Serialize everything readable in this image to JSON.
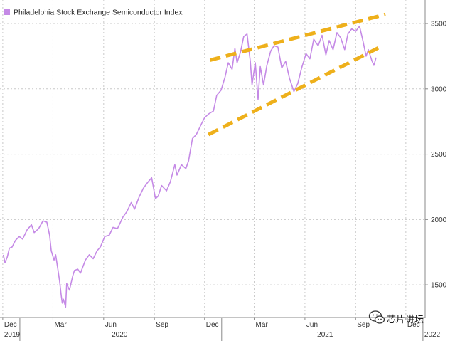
{
  "chart_data": {
    "type": "line",
    "title": "",
    "xlabel": "",
    "ylabel": "",
    "ylim": [
      1250,
      3680
    ],
    "xlim": [
      "2019-11-26",
      "2022-01-05"
    ],
    "grid": true,
    "legend_position": "top-left",
    "series": [
      {
        "name": "Philadelphia Stock Exchange Semiconductor Index",
        "color": "#c58ae6",
        "x": [
          "2019-12-02",
          "2019-12-05",
          "2019-12-09",
          "2019-12-13",
          "2019-12-18",
          "2019-12-24",
          "2019-12-31",
          "2020-01-06",
          "2020-01-14",
          "2020-01-22",
          "2020-01-27",
          "2020-02-04",
          "2020-02-12",
          "2020-02-19",
          "2020-02-24",
          "2020-02-27",
          "2020-03-03",
          "2020-03-06",
          "2020-03-10",
          "2020-03-13",
          "2020-03-16",
          "2020-03-18",
          "2020-03-20",
          "2020-03-24",
          "2020-03-26",
          "2020-03-31",
          "2020-04-06",
          "2020-04-09",
          "2020-04-15",
          "2020-04-20",
          "2020-04-29",
          "2020-05-06",
          "2020-05-13",
          "2020-05-20",
          "2020-05-26",
          "2020-06-03",
          "2020-06-11",
          "2020-06-18",
          "2020-06-26",
          "2020-07-06",
          "2020-07-13",
          "2020-07-21",
          "2020-07-27",
          "2020-08-04",
          "2020-08-12",
          "2020-08-19",
          "2020-08-27",
          "2020-09-03",
          "2020-09-08",
          "2020-09-14",
          "2020-09-23",
          "2020-09-30",
          "2020-10-08",
          "2020-10-12",
          "2020-10-20",
          "2020-10-28",
          "2020-11-02",
          "2020-11-09",
          "2020-11-16",
          "2020-11-24",
          "2020-12-01",
          "2020-12-09",
          "2020-12-17",
          "2020-12-23",
          "2020-12-31",
          "2021-01-07",
          "2021-01-13",
          "2021-01-20",
          "2021-01-25",
          "2021-01-29",
          "2021-02-04",
          "2021-02-10",
          "2021-02-16",
          "2021-02-22",
          "2021-02-25",
          "2021-03-03",
          "2021-03-08",
          "2021-03-12",
          "2021-03-18",
          "2021-03-24",
          "2021-03-31",
          "2021-04-06",
          "2021-04-13",
          "2021-04-20",
          "2021-04-27",
          "2021-05-04",
          "2021-05-12",
          "2021-05-19",
          "2021-05-26",
          "2021-06-03",
          "2021-06-10",
          "2021-06-17",
          "2021-06-25",
          "2021-07-02",
          "2021-07-09",
          "2021-07-15",
          "2021-07-22",
          "2021-07-29",
          "2021-08-05",
          "2021-08-12",
          "2021-08-18",
          "2021-08-25",
          "2021-09-01",
          "2021-09-08",
          "2021-09-14",
          "2021-09-20",
          "2021-09-24",
          "2021-09-30",
          "2021-10-04",
          "2021-10-08"
        ],
        "values": [
          1730,
          1670,
          1710,
          1780,
          1790,
          1840,
          1870,
          1850,
          1920,
          1960,
          1900,
          1930,
          1990,
          1980,
          1880,
          1760,
          1690,
          1730,
          1620,
          1530,
          1420,
          1360,
          1390,
          1330,
          1510,
          1460,
          1570,
          1610,
          1620,
          1590,
          1690,
          1730,
          1700,
          1760,
          1790,
          1870,
          1880,
          1940,
          1930,
          2020,
          2060,
          2130,
          2080,
          2170,
          2240,
          2280,
          2320,
          2160,
          2180,
          2260,
          2220,
          2290,
          2420,
          2340,
          2420,
          2390,
          2450,
          2620,
          2650,
          2720,
          2780,
          2810,
          2830,
          2950,
          2990,
          3090,
          3200,
          3150,
          3310,
          3200,
          3280,
          3400,
          3420,
          3210,
          3030,
          3200,
          2920,
          3170,
          3030,
          3180,
          3290,
          3330,
          3320,
          3160,
          3210,
          3080,
          2980,
          3040,
          3160,
          3270,
          3230,
          3380,
          3330,
          3410,
          3260,
          3370,
          3300,
          3430,
          3390,
          3300,
          3420,
          3460,
          3440,
          3480,
          3370,
          3250,
          3300,
          3220,
          3180,
          3240
        ]
      }
    ],
    "trendlines": [
      {
        "name": "upper",
        "color": "#eeb01b",
        "x": [
          "2020-12-11",
          "2021-10-25"
        ],
        "values": [
          3220,
          3570
        ]
      },
      {
        "name": "lower",
        "color": "#eeb01b",
        "x": [
          "2020-12-08",
          "2021-10-15"
        ],
        "values": [
          2650,
          3320
        ]
      }
    ],
    "yticks": [
      1500,
      2000,
      2500,
      3000,
      3500
    ],
    "ytick_labels": [
      "1500",
      "2000",
      "2500",
      "3000",
      "3500"
    ],
    "xticks_month": [
      {
        "date": "2019-12-01",
        "label": "Dec"
      },
      {
        "date": "2020-03-01",
        "label": "Mar"
      },
      {
        "date": "2020-06-01",
        "label": "Jun"
      },
      {
        "date": "2020-09-01",
        "label": "Sep"
      },
      {
        "date": "2020-12-01",
        "label": "Dec"
      },
      {
        "date": "2021-03-01",
        "label": "Mar"
      },
      {
        "date": "2021-06-01",
        "label": "Jun"
      },
      {
        "date": "2021-09-01",
        "label": "Sep"
      },
      {
        "date": "2021-12-01",
        "label": "Dec"
      }
    ],
    "xticks_year": [
      {
        "date": "2019-12-01",
        "label": "2019"
      },
      {
        "date": "2020-07-01",
        "label": "2020"
      },
      {
        "date": "2021-07-01",
        "label": "2021"
      },
      {
        "date": "2022-01-01",
        "label": "2022"
      }
    ],
    "year_dividers": [
      "2020-01-01",
      "2021-01-01",
      "2022-01-01"
    ]
  },
  "watermark": {
    "label": "芯片讲坛",
    "icon": "wechat-icon"
  },
  "colors": {
    "series": "#c58ae6",
    "trendline": "#eeb01b",
    "grid": "#c8c8c8",
    "axis": "#888888"
  }
}
